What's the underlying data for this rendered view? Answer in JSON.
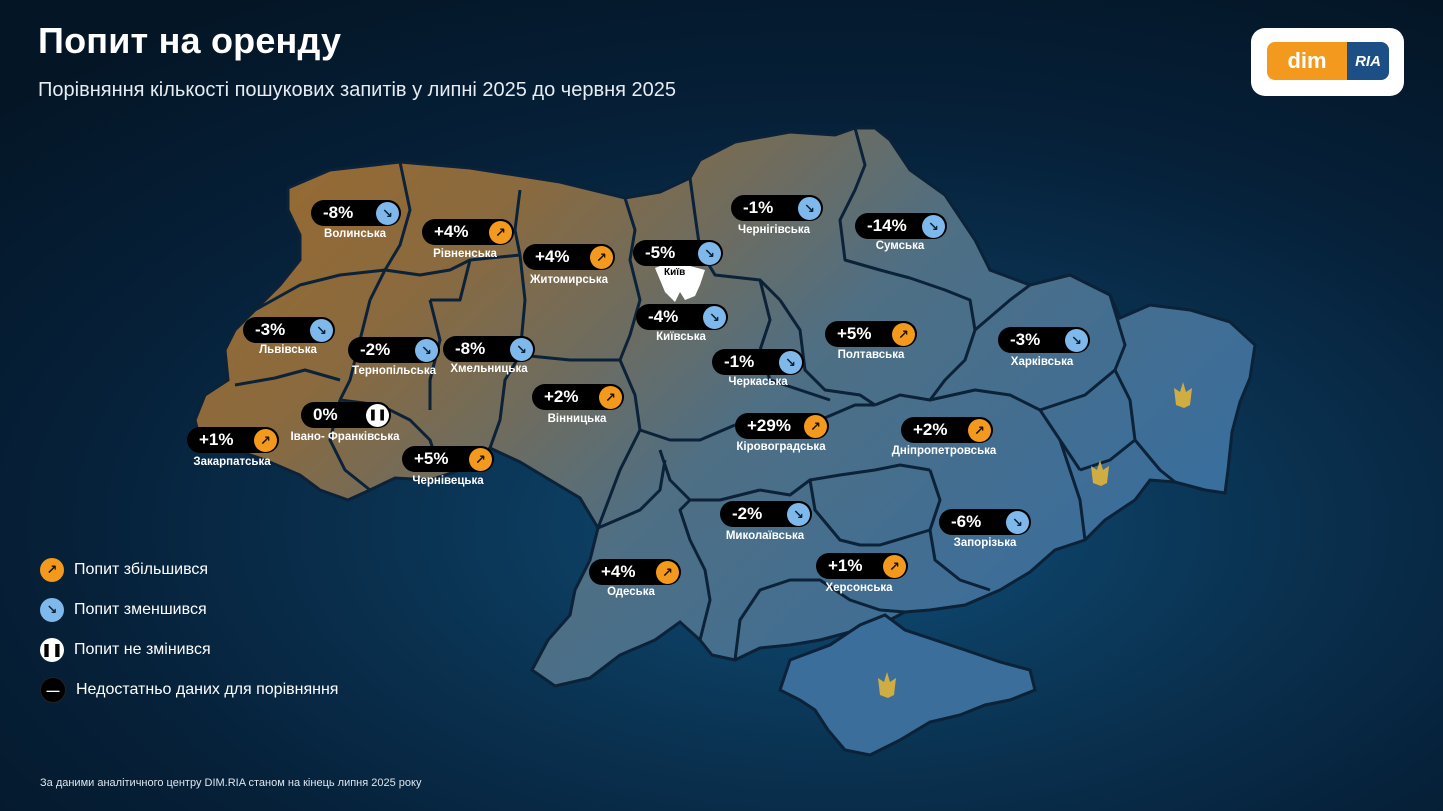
{
  "header": {
    "title": "Попит на оренду",
    "subtitle": "Порівняння кількості пошукових запитів у липні 2025 до червня 2025"
  },
  "logo": {
    "part1": "dim",
    "part2": "RIA"
  },
  "colors": {
    "increase": "#f39a1e",
    "decrease": "#7fb8ea",
    "nochange": "#ffffff",
    "nodata": "#000000"
  },
  "regions": [
    {
      "name": "Волинська",
      "value": "-8%",
      "trend": "down"
    },
    {
      "name": "Рівненська",
      "value": "+4%",
      "trend": "up"
    },
    {
      "name": "Житомирська",
      "value": "+4%",
      "trend": "up"
    },
    {
      "name": "Київ",
      "value": "-5%",
      "trend": "down"
    },
    {
      "name": "Чернігівська",
      "value": "-1%",
      "trend": "down"
    },
    {
      "name": "Сумська",
      "value": "-14%",
      "trend": "down"
    },
    {
      "name": "Львівська",
      "value": "-3%",
      "trend": "down"
    },
    {
      "name": "Тернопільська",
      "value": "-2%",
      "trend": "down"
    },
    {
      "name": "Хмельницька",
      "value": "-8%",
      "trend": "down"
    },
    {
      "name": "Київська",
      "value": "-4%",
      "trend": "down"
    },
    {
      "name": "Полтавська",
      "value": "+5%",
      "trend": "up"
    },
    {
      "name": "Харківська",
      "value": "-3%",
      "trend": "down"
    },
    {
      "name": "Черкаська",
      "value": "-1%",
      "trend": "down"
    },
    {
      "name": "Вінницька",
      "value": "+2%",
      "trend": "up"
    },
    {
      "name": "Івано- Франківська",
      "value": "0%",
      "trend": "pause"
    },
    {
      "name": "Закарпатська",
      "value": "+1%",
      "trend": "up"
    },
    {
      "name": "Кіровоградська",
      "value": "+29%",
      "trend": "up"
    },
    {
      "name": "Дніпропетровська",
      "value": "+2%",
      "trend": "up"
    },
    {
      "name": "Чернівецька",
      "value": "+5%",
      "trend": "up"
    },
    {
      "name": "Миколаївська",
      "value": "-2%",
      "trend": "down"
    },
    {
      "name": "Запорізька",
      "value": "-6%",
      "trend": "down"
    },
    {
      "name": "Одеська",
      "value": "+4%",
      "trend": "up"
    },
    {
      "name": "Херсонська",
      "value": "+1%",
      "trend": "up"
    }
  ],
  "legend": [
    {
      "label": "Попит збільшився",
      "icon": "arrow-up-right-icon",
      "trend": "up"
    },
    {
      "label": "Попит зменшився",
      "icon": "arrow-down-right-icon",
      "trend": "down"
    },
    {
      "label": "Попит не змінився",
      "icon": "pause-icon",
      "trend": "pause"
    },
    {
      "label": "Недостатньо даних для порівняння",
      "icon": "minus-icon",
      "trend": "none"
    }
  ],
  "source": "За даними аналітичного центру DIM.RIA станом на кінець липня 2025 року"
}
